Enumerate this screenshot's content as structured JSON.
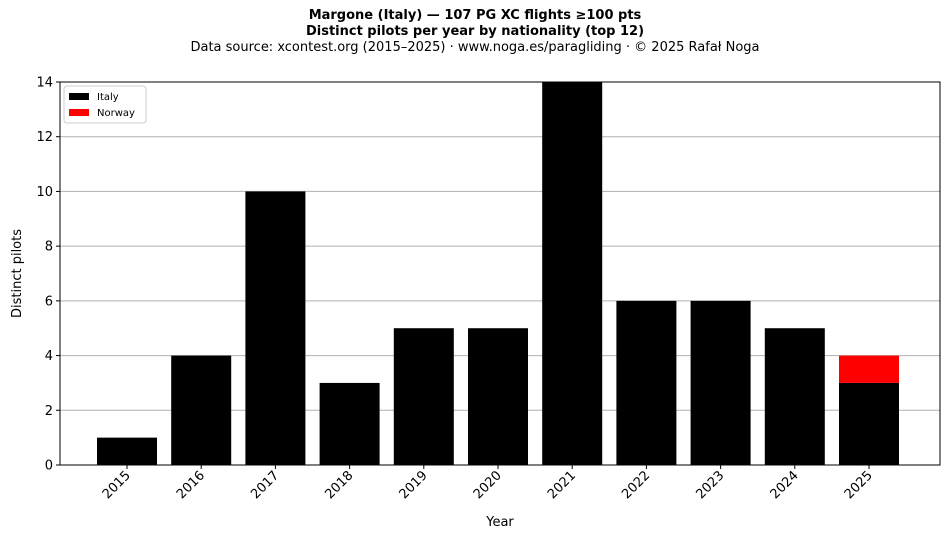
{
  "chart_data": {
    "type": "bar",
    "stacked": true,
    "title": "Margone (Italy)  —  107 PG XC flights ≥100 pts",
    "subtitle": "Distinct pilots per year by nationality (top 12)",
    "source": "Data source: xcontest.org (2015–2025)  ·  www.noga.es/paragliding  ·  © 2025 Rafał Noga",
    "xlabel": "Year",
    "ylabel": "Distinct pilots",
    "ylim": [
      0,
      14
    ],
    "yticks": [
      0,
      2,
      4,
      6,
      8,
      10,
      12,
      14
    ],
    "grid": "horizontal",
    "legend_position": "top-left",
    "categories": [
      "2015",
      "2016",
      "2017",
      "2018",
      "2019",
      "2020",
      "2021",
      "2022",
      "2023",
      "2024",
      "2025"
    ],
    "series": [
      {
        "name": "Italy",
        "color": "#000000",
        "values": [
          1,
          4,
          10,
          3,
          5,
          5,
          14,
          6,
          6,
          5,
          3
        ]
      },
      {
        "name": "Norway",
        "color": "#ff0000",
        "values": [
          0,
          0,
          0,
          0,
          0,
          0,
          0,
          0,
          0,
          0,
          1
        ]
      }
    ]
  }
}
